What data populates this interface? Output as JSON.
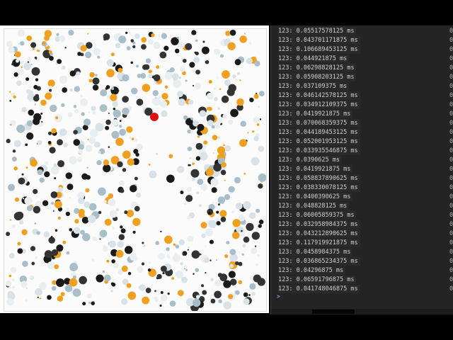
{
  "colors": {
    "dot_palette": [
      "#1a1a1a",
      "#333333",
      "#f0a020",
      "#a8bec8",
      "#d8e2e8",
      "#e9eef1"
    ],
    "cursor": "#e01010"
  },
  "console": {
    "prompt": ">",
    "source_label": "0",
    "entries": [
      "123: 0.05517578125 ms",
      "123: 0.043701171875 ms",
      "123: 0.106689453125 ms",
      "123: 0.044921875 ms",
      "123: 0.06298828125 ms",
      "123: 0.05908203125 ms",
      "123: 0.037109375 ms",
      "123: 0.046142578125 ms",
      "123: 0.034912109375 ms",
      "123: 0.0419921875 ms",
      "123: 0.070068359375 ms",
      "123: 0.044189453125 ms",
      "123: 0.052001953125 ms",
      "123: 0.033935546875 ms",
      "123: 0.0390625 ms",
      "123: 0.0419921875 ms",
      "123: 0.058837890625 ms",
      "123: 0.038330078125 ms",
      "123: 0.0400390625 ms",
      "123: 0.048828125 ms",
      "123: 0.06005859375 ms",
      "123: 0.032958984375 ms",
      "123: 0.043212890625 ms",
      "123: 0.117919921875 ms",
      "123: 0.0458984375 ms",
      "123: 0.036865234375 ms",
      "123: 0.04296875 ms",
      "123: 0.06591796875 ms",
      "123: 0.041748046875 ms"
    ]
  }
}
